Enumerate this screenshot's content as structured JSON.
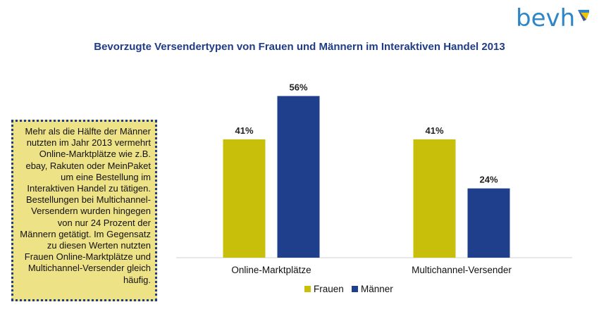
{
  "logo": {
    "text": "bevh",
    "icon": "bevh-logo-mark"
  },
  "colors": {
    "frauen": "#c8bf0a",
    "maenner": "#1f3f8c",
    "title": "#1f3c88",
    "logo": "#2e86c8"
  },
  "note": {
    "lines": [
      "Mehr als die Hälfte der Männer",
      "nutzten im Jahr 2013 vermehrt",
      "Online-Marktplätze wie z.B.",
      "ebay, Rakuten oder MeinPaket",
      "um eine Bestellung im",
      "Interaktiven Handel zu tätigen.",
      "Bestellungen bei Multichannel-",
      "Versendern wurden hingegen",
      "von nur 24 Prozent der",
      "Männern getätigt. Im Gegensatz",
      "zu diesen Werten nutzten",
      "Frauen Online-Marktplätze und",
      "Multichannel-Versender gleich",
      "häufig."
    ]
  },
  "chart_data": {
    "type": "bar",
    "title": "Bevorzugte Versendertypen von Frauen und Männern im Interaktiven Handel 2013",
    "categories": [
      "Online-Marktplätze",
      "Multichannel-Versender"
    ],
    "series": [
      {
        "name": "Frauen",
        "values": [
          41,
          41
        ],
        "labels": [
          "41%",
          "41%"
        ]
      },
      {
        "name": "Männer",
        "values": [
          56,
          24
        ],
        "labels": [
          "56%",
          "24%"
        ]
      }
    ],
    "ylim": [
      0,
      60
    ],
    "grid": false,
    "legend_position": "bottom"
  }
}
